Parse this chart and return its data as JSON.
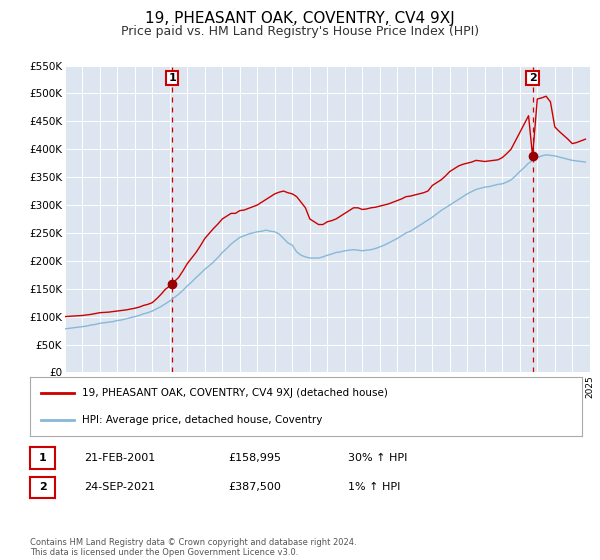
{
  "title": "19, PHEASANT OAK, COVENTRY, CV4 9XJ",
  "subtitle": "Price paid vs. HM Land Registry's House Price Index (HPI)",
  "title_fontsize": 11,
  "subtitle_fontsize": 9,
  "background_color": "#ffffff",
  "plot_bg_color": "#dde6f0",
  "grid_color": "#ffffff",
  "xmin": 1995,
  "xmax": 2025,
  "ymin": 0,
  "ymax": 550000,
  "yticks": [
    0,
    50000,
    100000,
    150000,
    200000,
    250000,
    300000,
    350000,
    400000,
    450000,
    500000,
    550000
  ],
  "ytick_labels": [
    "£0",
    "£50K",
    "£100K",
    "£150K",
    "£200K",
    "£250K",
    "£300K",
    "£350K",
    "£400K",
    "£450K",
    "£500K",
    "£550K"
  ],
  "red_line_color": "#cc0000",
  "blue_line_color": "#88b8d8",
  "marker_color": "#990000",
  "dashed_line_color": "#cc0000",
  "annotation_box_color": "#cc0000",
  "legend_label_red": "19, PHEASANT OAK, COVENTRY, CV4 9XJ (detached house)",
  "legend_label_blue": "HPI: Average price, detached house, Coventry",
  "marker1_x": 2001.13,
  "marker1_y": 158995,
  "marker2_x": 2021.73,
  "marker2_y": 387500,
  "footnote": "Contains HM Land Registry data © Crown copyright and database right 2024.\nThis data is licensed under the Open Government Licence v3.0.",
  "table_rows": [
    {
      "num": "1",
      "date": "21-FEB-2001",
      "price": "£158,995",
      "hpi": "30% ↑ HPI"
    },
    {
      "num": "2",
      "date": "24-SEP-2021",
      "price": "£387,500",
      "hpi": "1% ↑ HPI"
    }
  ],
  "red_x": [
    1995.0,
    1995.25,
    1995.5,
    1995.75,
    1996.0,
    1996.25,
    1996.5,
    1996.75,
    1997.0,
    1997.25,
    1997.5,
    1997.75,
    1998.0,
    1998.25,
    1998.5,
    1998.75,
    1999.0,
    1999.25,
    1999.5,
    1999.75,
    2000.0,
    2000.25,
    2000.5,
    2000.75,
    2001.0,
    2001.13,
    2001.5,
    2001.75,
    2002.0,
    2002.25,
    2002.5,
    2002.75,
    2003.0,
    2003.25,
    2003.5,
    2003.75,
    2004.0,
    2004.25,
    2004.5,
    2004.75,
    2005.0,
    2005.25,
    2005.5,
    2005.75,
    2006.0,
    2006.25,
    2006.5,
    2006.75,
    2007.0,
    2007.25,
    2007.5,
    2007.75,
    2008.0,
    2008.25,
    2008.5,
    2008.75,
    2009.0,
    2009.25,
    2009.5,
    2009.75,
    2010.0,
    2010.25,
    2010.5,
    2010.75,
    2011.0,
    2011.25,
    2011.5,
    2011.75,
    2012.0,
    2012.25,
    2012.5,
    2012.75,
    2013.0,
    2013.25,
    2013.5,
    2013.75,
    2014.0,
    2014.25,
    2014.5,
    2014.75,
    2015.0,
    2015.25,
    2015.5,
    2015.75,
    2016.0,
    2016.25,
    2016.5,
    2016.75,
    2017.0,
    2017.25,
    2017.5,
    2017.75,
    2018.0,
    2018.25,
    2018.5,
    2018.75,
    2019.0,
    2019.25,
    2019.5,
    2019.75,
    2020.0,
    2020.25,
    2020.5,
    2020.75,
    2021.0,
    2021.25,
    2021.5,
    2021.73,
    2022.0,
    2022.25,
    2022.5,
    2022.75,
    2023.0,
    2023.25,
    2023.5,
    2023.75,
    2024.0,
    2024.25,
    2024.5,
    2024.75
  ],
  "red_y": [
    100000,
    100500,
    101000,
    101500,
    102000,
    103000,
    104000,
    105500,
    107000,
    107500,
    108000,
    109000,
    110000,
    111000,
    112000,
    113500,
    115000,
    117000,
    120000,
    122000,
    125000,
    132000,
    140000,
    149000,
    155000,
    158995,
    170000,
    182000,
    195000,
    205000,
    215000,
    227000,
    240000,
    249000,
    258000,
    266000,
    275000,
    280000,
    285000,
    285000,
    290000,
    291000,
    294000,
    297000,
    300000,
    305000,
    310000,
    315000,
    320000,
    323000,
    325000,
    322000,
    320000,
    315000,
    305000,
    295000,
    275000,
    270000,
    265000,
    265000,
    270000,
    272000,
    275000,
    280000,
    285000,
    290000,
    295000,
    295000,
    292000,
    293000,
    295000,
    296000,
    298000,
    300000,
    302000,
    305000,
    308000,
    311000,
    315000,
    316000,
    318000,
    320000,
    322000,
    325000,
    335000,
    340000,
    345000,
    352000,
    360000,
    365000,
    370000,
    373000,
    375000,
    377000,
    380000,
    379000,
    378000,
    379000,
    380000,
    381000,
    385000,
    392000,
    400000,
    415000,
    430000,
    445000,
    460000,
    387500,
    490000,
    492000,
    495000,
    485000,
    440000,
    432000,
    425000,
    418000,
    410000,
    412000,
    415000,
    418000
  ],
  "blue_x": [
    1995.0,
    1995.25,
    1995.5,
    1995.75,
    1996.0,
    1996.25,
    1996.5,
    1996.75,
    1997.0,
    1997.25,
    1997.5,
    1997.75,
    1998.0,
    1998.25,
    1998.5,
    1998.75,
    1999.0,
    1999.25,
    1999.5,
    1999.75,
    2000.0,
    2000.25,
    2000.5,
    2000.75,
    2001.0,
    2001.25,
    2001.5,
    2001.75,
    2002.0,
    2002.25,
    2002.5,
    2002.75,
    2003.0,
    2003.25,
    2003.5,
    2003.75,
    2004.0,
    2004.25,
    2004.5,
    2004.75,
    2005.0,
    2005.25,
    2005.5,
    2005.75,
    2006.0,
    2006.25,
    2006.5,
    2006.75,
    2007.0,
    2007.25,
    2007.5,
    2007.75,
    2008.0,
    2008.25,
    2008.5,
    2008.75,
    2009.0,
    2009.25,
    2009.5,
    2009.75,
    2010.0,
    2010.25,
    2010.5,
    2010.75,
    2011.0,
    2011.25,
    2011.5,
    2011.75,
    2012.0,
    2012.25,
    2012.5,
    2012.75,
    2013.0,
    2013.25,
    2013.5,
    2013.75,
    2014.0,
    2014.25,
    2014.5,
    2014.75,
    2015.0,
    2015.25,
    2015.5,
    2015.75,
    2016.0,
    2016.25,
    2016.5,
    2016.75,
    2017.0,
    2017.25,
    2017.5,
    2017.75,
    2018.0,
    2018.25,
    2018.5,
    2018.75,
    2019.0,
    2019.25,
    2019.5,
    2019.75,
    2020.0,
    2020.25,
    2020.5,
    2020.75,
    2021.0,
    2021.25,
    2021.5,
    2021.75,
    2022.0,
    2022.25,
    2022.5,
    2022.75,
    2023.0,
    2023.25,
    2023.5,
    2023.75,
    2024.0,
    2024.25,
    2024.5,
    2024.75
  ],
  "blue_y": [
    78000,
    79000,
    80000,
    81000,
    82000,
    83000,
    85000,
    86000,
    88000,
    89000,
    90000,
    91000,
    93000,
    94000,
    96000,
    98000,
    100000,
    102000,
    105000,
    107000,
    110000,
    114000,
    118000,
    123000,
    128000,
    134000,
    140000,
    147000,
    155000,
    162000,
    170000,
    177000,
    185000,
    191000,
    198000,
    206000,
    215000,
    222000,
    230000,
    236000,
    242000,
    245000,
    248000,
    250000,
    252000,
    253000,
    255000,
    253000,
    252000,
    248000,
    240000,
    232000,
    228000,
    216000,
    210000,
    207000,
    205000,
    205000,
    205000,
    207000,
    210000,
    212000,
    215000,
    216000,
    218000,
    219000,
    220000,
    219000,
    218000,
    219000,
    220000,
    222000,
    225000,
    228000,
    232000,
    236000,
    240000,
    245000,
    250000,
    253000,
    258000,
    263000,
    268000,
    273000,
    278000,
    284000,
    290000,
    295000,
    300000,
    305000,
    310000,
    315000,
    320000,
    324000,
    328000,
    330000,
    332000,
    333000,
    335000,
    337000,
    338000,
    341000,
    345000,
    352000,
    360000,
    367000,
    375000,
    380000,
    385000,
    388000,
    390000,
    389000,
    388000,
    386000,
    384000,
    382000,
    380000,
    379000,
    378000,
    377000
  ]
}
